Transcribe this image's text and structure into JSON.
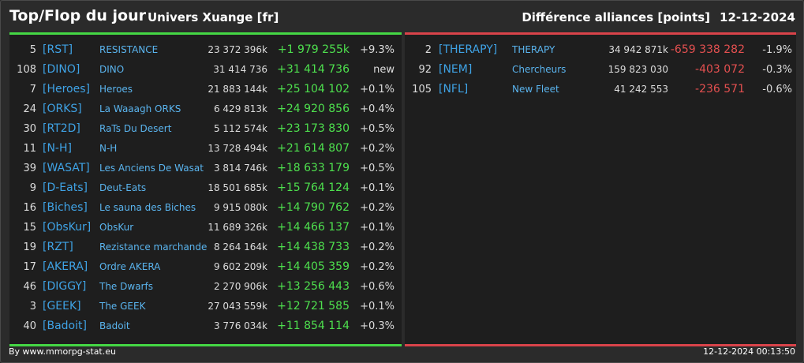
{
  "header": {
    "title": "Top/Flop du jour",
    "server": "Univers Xuange [fr]",
    "section": "Différence alliances [points]",
    "date": "12-12-2024"
  },
  "colors": {
    "positive": "#4ee04e",
    "negative": "#e45050",
    "tag": "#3fa3e6"
  },
  "top": [
    {
      "rank": "5",
      "tag": "[RST]",
      "name": "RESISTANCE",
      "points": "23 372 396k",
      "diff": "+1 979 255k",
      "pct": "+9.3%"
    },
    {
      "rank": "108",
      "tag": "[DINO]",
      "name": "DINO",
      "points": "31 414 736",
      "diff": "+31 414 736",
      "pct": "new"
    },
    {
      "rank": "7",
      "tag": "[Heroes]",
      "name": "Heroes",
      "points": "21 883 144k",
      "diff": "+25 104 102",
      "pct": "+0.1%"
    },
    {
      "rank": "24",
      "tag": "[ORKS]",
      "name": "La Waaagh ORKS",
      "points": "6 429 813k",
      "diff": "+24 920 856",
      "pct": "+0.4%"
    },
    {
      "rank": "30",
      "tag": "[RT2D]",
      "name": "RaTs Du Desert",
      "points": "5 112 574k",
      "diff": "+23 173 830",
      "pct": "+0.5%"
    },
    {
      "rank": "11",
      "tag": "[N-H]",
      "name": "N-H",
      "points": "13 728 494k",
      "diff": "+21 614 807",
      "pct": "+0.2%"
    },
    {
      "rank": "39",
      "tag": "[WASAT]",
      "name": "Les Anciens De Wasat",
      "points": "3 814 746k",
      "diff": "+18 633 179",
      "pct": "+0.5%"
    },
    {
      "rank": "9",
      "tag": "[D-Eats]",
      "name": "Deut-Eats",
      "points": "18 501 685k",
      "diff": "+15 764 124",
      "pct": "+0.1%"
    },
    {
      "rank": "16",
      "tag": "[Biches]",
      "name": "Le sauna des Biches",
      "points": "9 915 080k",
      "diff": "+14 790 762",
      "pct": "+0.2%"
    },
    {
      "rank": "15",
      "tag": "[ObsKur]",
      "name": "ObsKur",
      "points": "11 689 326k",
      "diff": "+14 466 137",
      "pct": "+0.1%"
    },
    {
      "rank": "19",
      "tag": "[RZT]",
      "name": "Rezistance marchande",
      "points": "8 264 164k",
      "diff": "+14 438 733",
      "pct": "+0.2%"
    },
    {
      "rank": "17",
      "tag": "[AKERA]",
      "name": "Ordre AKERA",
      "points": "9 602 209k",
      "diff": "+14 405 359",
      "pct": "+0.2%"
    },
    {
      "rank": "46",
      "tag": "[DIGGY]",
      "name": "The Dwarfs",
      "points": "2 270 906k",
      "diff": "+13 256 443",
      "pct": "+0.6%"
    },
    {
      "rank": "3",
      "tag": "[GEEK]",
      "name": "The GEEK",
      "points": "27 043 559k",
      "diff": "+12 721 585",
      "pct": "+0.1%"
    },
    {
      "rank": "40",
      "tag": "[Badoit]",
      "name": "Badoit",
      "points": "3 776 034k",
      "diff": "+11 854 114",
      "pct": "+0.3%"
    }
  ],
  "flop": [
    {
      "rank": "2",
      "tag": "[THERAPY]",
      "name": "THERAPY",
      "points": "34 942 871k",
      "diff": "-659 338 282",
      "pct": "-1.9%"
    },
    {
      "rank": "92",
      "tag": "[NEM]",
      "name": "Chercheurs",
      "points": "159 823 030",
      "diff": "-403 072",
      "pct": "-0.3%"
    },
    {
      "rank": "105",
      "tag": "[NFL]",
      "name": "New Fleet",
      "points": "41 242 553",
      "diff": "-236 571",
      "pct": "-0.6%"
    }
  ],
  "footer": {
    "credit": "By www.mmorpg-stat.eu",
    "timestamp": "12-12-2024 00:13:50"
  }
}
